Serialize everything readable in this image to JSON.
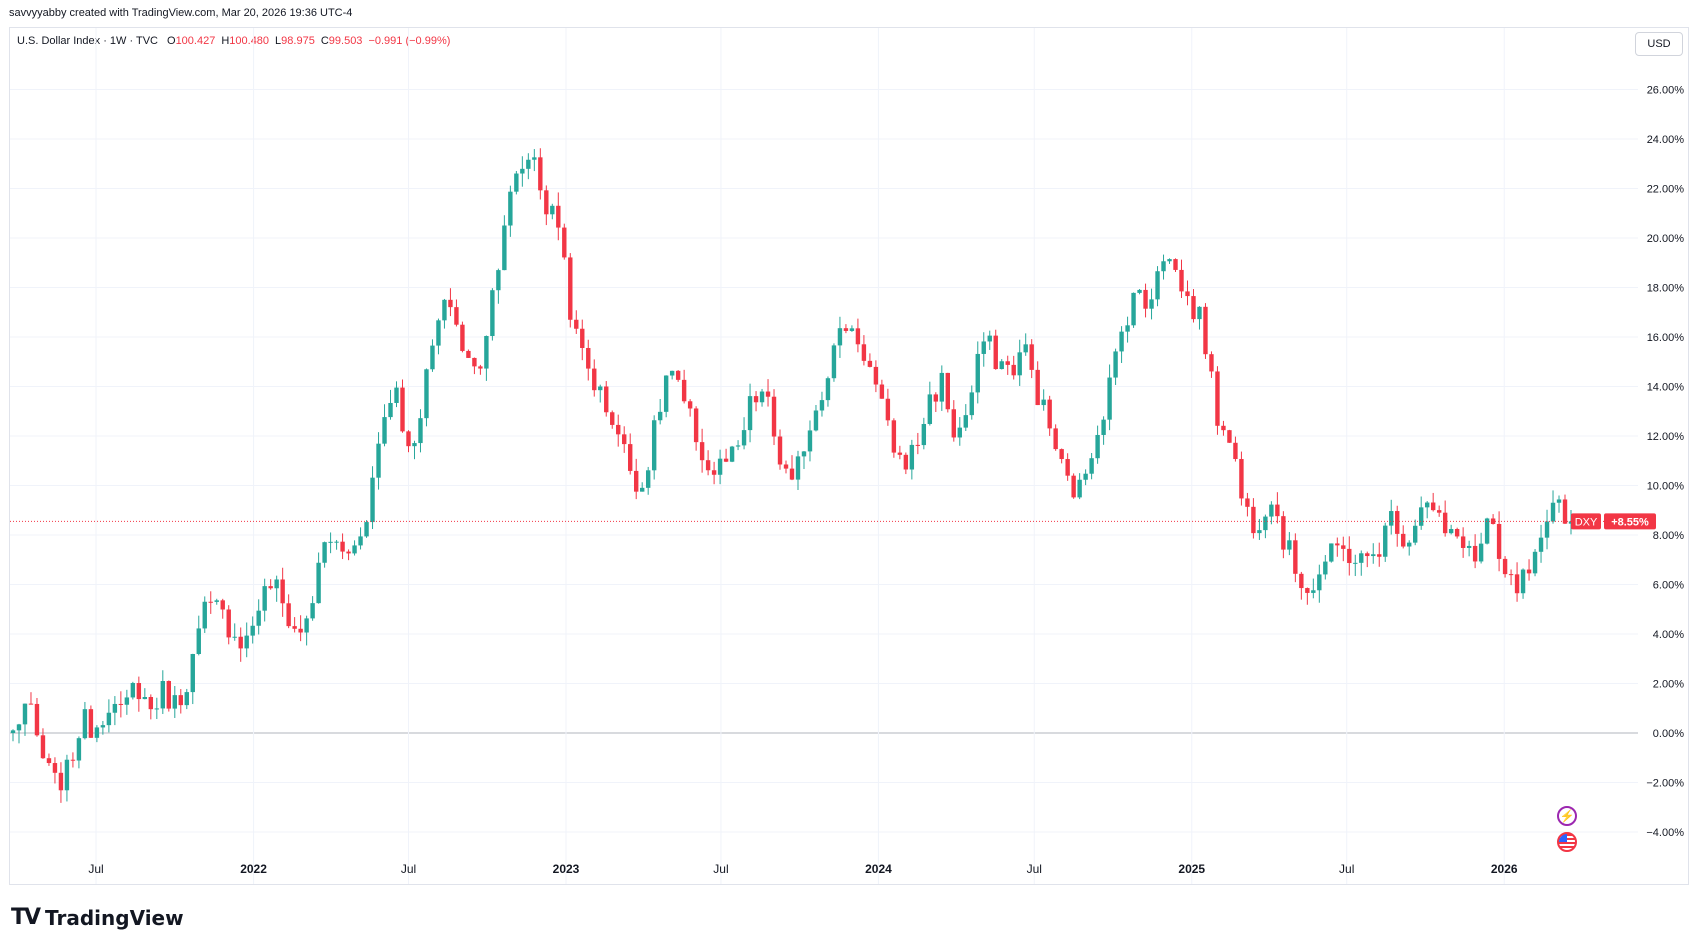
{
  "header": {
    "credit": "savvyyabby created with TradingView.com, Mar 20, 2026 19:36 UTC-4"
  },
  "legend": {
    "symbol": "U.S. Dollar Index · 1W · TVC",
    "open_label": "O",
    "open": "100.427",
    "high_label": "H",
    "high": "100.480",
    "low_label": "L",
    "low": "98.975",
    "close_label": "C",
    "close": "99.503",
    "change": "−0.991 (−0.99%)"
  },
  "currency_button": "USD",
  "brand": {
    "logo_mark": "TV",
    "name": "TradingView"
  },
  "colors": {
    "up": "#26a69a",
    "down": "#f23645",
    "grid": "#f0f3fa",
    "zero_line": "#b2b5be"
  },
  "chart_data": {
    "type": "candlestick",
    "series_label": "DXY",
    "current_value_label": "+8.55%",
    "current_value": 8.55,
    "y_axis": {
      "unit": "%",
      "range": [
        -5.0,
        27.0
      ],
      "ticks": [
        "26.00%",
        "24.00%",
        "22.00%",
        "20.00%",
        "18.00%",
        "16.00%",
        "14.00%",
        "12.00%",
        "10.00%",
        "8.00%",
        "6.00%",
        "4.00%",
        "2.00%",
        "0.00%",
        "−2.00%",
        "−4.00%"
      ],
      "tick_values": [
        26,
        24,
        22,
        20,
        18,
        16,
        14,
        12,
        10,
        8,
        6,
        4,
        2,
        0,
        -2,
        -4
      ]
    },
    "x_axis": {
      "labels": [
        "Jul",
        "2022",
        "Jul",
        "2023",
        "Jul",
        "2024",
        "Jul",
        "2025",
        "Jul",
        "2026"
      ],
      "label_dates": [
        "2021-07",
        "2022-01",
        "2022-07",
        "2023-01",
        "2023-07",
        "2024-01",
        "2024-07",
        "2025-01",
        "2025-07",
        "2026-01"
      ],
      "bold": [
        false,
        true,
        false,
        true,
        false,
        true,
        false,
        true,
        false,
        true
      ]
    },
    "first_week": "2021-03-26",
    "last_week": "2026-03-20",
    "path": [
      0,
      1.3,
      -0.8,
      -2.1,
      -1.6,
      0.5,
      0.2,
      1.3,
      0.6,
      2.1,
      0.9,
      1.7,
      1.1,
      2.6,
      4.9,
      5.0,
      4.2,
      3.6,
      5.2,
      6.2,
      4.8,
      3.9,
      5.6,
      8.1,
      7.2,
      7.5,
      9.2,
      12.5,
      14.2,
      11.1,
      13.6,
      16.4,
      17.5,
      15.3,
      14.4,
      17.5,
      20.9,
      22.6,
      23.6,
      21.2,
      20.6,
      16.2,
      14.9,
      13.6,
      12.6,
      10.9,
      9.9,
      12.3,
      14.9,
      13.3,
      12.0,
      10.4,
      10.9,
      11.2,
      13.3,
      13.8,
      11.2,
      9.8,
      12.0,
      13.6,
      15.4,
      16.6,
      15.8,
      14.2,
      12.2,
      10.9,
      11.4,
      13.4,
      14.2,
      11.8,
      13.3,
      15.9,
      15.1,
      14.6,
      15.6,
      13.7,
      12.1,
      10.2,
      9.7,
      11.7,
      13.5,
      15.9,
      17.9,
      17.1,
      19.6,
      18.7,
      17.4,
      16.7,
      12.9,
      12.2,
      9.2,
      8.4,
      9.8,
      7.8,
      6.4,
      5.8,
      6.9,
      7.4,
      7.2,
      6.8,
      7.6,
      8.9,
      7.6,
      9.4,
      8.9,
      7.8,
      8.0,
      6.9,
      8.6,
      6.3,
      5.8,
      6.5,
      7.6,
      9.5,
      8.55
    ]
  }
}
